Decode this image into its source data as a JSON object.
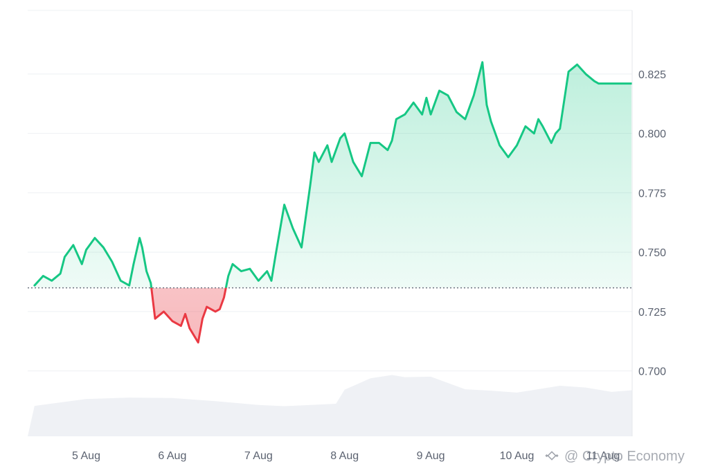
{
  "colors": {
    "up": "#16c784",
    "down": "#ea3943",
    "volume": "#eff1f5",
    "grid": "#eef0f3",
    "baseline": "#6b7280",
    "label": "#5b6270"
  },
  "watermark": {
    "text": "@ Crypto Economy",
    "icon": "binance-logo-icon"
  },
  "chart_data": {
    "type": "area",
    "title": "",
    "xlabel": "",
    "ylabel": "",
    "x_ticks": [
      "5 Aug",
      "6 Aug",
      "7 Aug",
      "8 Aug",
      "9 Aug",
      "10 Aug",
      "11 Aug"
    ],
    "y_ticks": [
      0.7,
      0.725,
      0.75,
      0.775,
      0.8,
      0.825
    ],
    "y_tick_labels": [
      "0.700",
      "0.725",
      "0.750",
      "0.775",
      "0.800",
      "0.825"
    ],
    "ylim": [
      0.6725,
      0.8518
    ],
    "baseline": 0.735,
    "grid": true,
    "legend": "none",
    "price": {
      "x": [
        4.4,
        4.5,
        4.6,
        4.7,
        4.75,
        4.85,
        4.95,
        5.0,
        5.1,
        5.2,
        5.3,
        5.4,
        5.5,
        5.55,
        5.62,
        5.65,
        5.7,
        5.75,
        5.8,
        5.9,
        6.0,
        6.1,
        6.15,
        6.2,
        6.3,
        6.35,
        6.4,
        6.5,
        6.55,
        6.6,
        6.65,
        6.7,
        6.8,
        6.9,
        7.0,
        7.1,
        7.15,
        7.2,
        7.3,
        7.4,
        7.5,
        7.55,
        7.6,
        7.65,
        7.7,
        7.8,
        7.85,
        7.95,
        8.0,
        8.1,
        8.2,
        8.3,
        8.4,
        8.5,
        8.55,
        8.6,
        8.7,
        8.8,
        8.9,
        8.95,
        9.0,
        9.1,
        9.2,
        9.3,
        9.4,
        9.5,
        9.6,
        9.65,
        9.7,
        9.8,
        9.9,
        10.0,
        10.1,
        10.2,
        10.25,
        10.3,
        10.4,
        10.45,
        10.5,
        10.6,
        10.7,
        10.8,
        10.9,
        10.95,
        11.0,
        11.1,
        11.15,
        11.2,
        11.3,
        11.35,
        11.4
      ],
      "values": [
        0.736,
        0.74,
        0.738,
        0.741,
        0.748,
        0.753,
        0.745,
        0.751,
        0.756,
        0.752,
        0.746,
        0.738,
        0.736,
        0.745,
        0.756,
        0.752,
        0.742,
        0.737,
        0.722,
        0.725,
        0.721,
        0.719,
        0.724,
        0.718,
        0.712,
        0.722,
        0.727,
        0.725,
        0.726,
        0.731,
        0.74,
        0.745,
        0.742,
        0.743,
        0.738,
        0.742,
        0.738,
        0.749,
        0.77,
        0.76,
        0.752,
        0.765,
        0.778,
        0.792,
        0.788,
        0.795,
        0.788,
        0.798,
        0.8,
        0.788,
        0.782,
        0.796,
        0.796,
        0.793,
        0.797,
        0.806,
        0.808,
        0.813,
        0.808,
        0.815,
        0.808,
        0.818,
        0.816,
        0.809,
        0.806,
        0.816,
        0.83,
        0.812,
        0.805,
        0.795,
        0.79,
        0.795,
        0.803,
        0.8,
        0.806,
        0.803,
        0.796,
        0.8,
        0.802,
        0.826,
        0.829,
        0.825,
        0.822,
        0.821,
        0.821,
        0.821,
        0.821,
        0.821,
        0.821,
        0.821,
        0.821
      ]
    },
    "volume": {
      "x": [
        4.4,
        5.0,
        5.5,
        6.0,
        6.5,
        7.0,
        7.3,
        7.5,
        7.9,
        8.0,
        8.3,
        8.55,
        8.7,
        9.0,
        9.4,
        9.7,
        10.0,
        10.3,
        10.5,
        10.8,
        11.1,
        11.4
      ],
      "values": [
        0.6853,
        0.6882,
        0.6888,
        0.6886,
        0.6873,
        0.6857,
        0.6852,
        0.6855,
        0.6862,
        0.6921,
        0.6969,
        0.6983,
        0.6974,
        0.6976,
        0.6923,
        0.6917,
        0.6909,
        0.6926,
        0.6938,
        0.693,
        0.6912,
        0.6919
      ]
    }
  }
}
